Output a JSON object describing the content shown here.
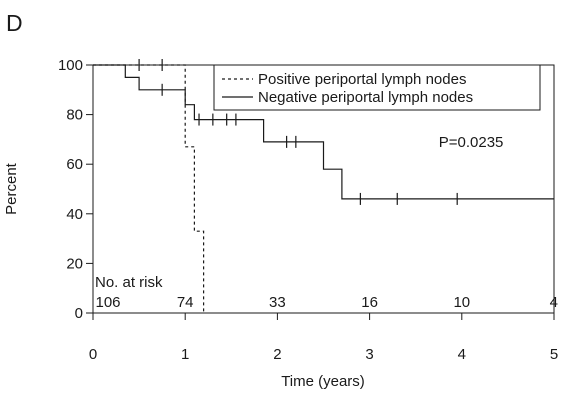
{
  "panel_label": "D",
  "chart_data": {
    "type": "line",
    "title": "",
    "xlabel": "Time (years)",
    "ylabel": "Percent",
    "xlim": [
      0,
      5
    ],
    "ylim": [
      0,
      100
    ],
    "x_ticks": [
      0,
      1,
      2,
      3,
      4,
      5
    ],
    "y_ticks": [
      0,
      20,
      40,
      60,
      80,
      100
    ],
    "grid": false,
    "legend_position": "top-right",
    "series": [
      {
        "name": "Positive periportal lymph nodes",
        "style": "dashed",
        "color": "#1a1a1a",
        "steps": [
          [
            0,
            100
          ],
          [
            1.0,
            100
          ],
          [
            1.0,
            67
          ],
          [
            1.1,
            67
          ],
          [
            1.1,
            33
          ],
          [
            1.2,
            33
          ],
          [
            1.2,
            0
          ]
        ],
        "censored": [
          [
            0.5,
            100
          ],
          [
            0.75,
            100
          ]
        ]
      },
      {
        "name": "Negative periportal lymph nodes",
        "style": "solid",
        "color": "#1a1a1a",
        "steps": [
          [
            0,
            100
          ],
          [
            0.35,
            100
          ],
          [
            0.35,
            95
          ],
          [
            0.5,
            95
          ],
          [
            0.5,
            90
          ],
          [
            1.0,
            90
          ],
          [
            1.0,
            84
          ],
          [
            1.1,
            84
          ],
          [
            1.1,
            78
          ],
          [
            1.85,
            78
          ],
          [
            1.85,
            69
          ],
          [
            2.5,
            69
          ],
          [
            2.5,
            58
          ],
          [
            2.7,
            58
          ],
          [
            2.7,
            46
          ],
          [
            5,
            46
          ]
        ],
        "censored": [
          [
            0.75,
            90
          ],
          [
            1.15,
            78
          ],
          [
            1.3,
            78
          ],
          [
            1.45,
            78
          ],
          [
            1.55,
            78
          ],
          [
            2.1,
            69
          ],
          [
            2.2,
            69
          ],
          [
            2.9,
            46
          ],
          [
            3.3,
            46
          ],
          [
            3.95,
            46
          ]
        ]
      }
    ],
    "annotations": [
      {
        "text": "P=0.0235",
        "x": 3.75,
        "y": 67
      }
    ],
    "risk_table": {
      "label": "No. at risk",
      "times": [
        0,
        1,
        2,
        3,
        4,
        5
      ],
      "counts": [
        "106",
        "74",
        "33",
        "16",
        "10",
        "4"
      ]
    }
  }
}
